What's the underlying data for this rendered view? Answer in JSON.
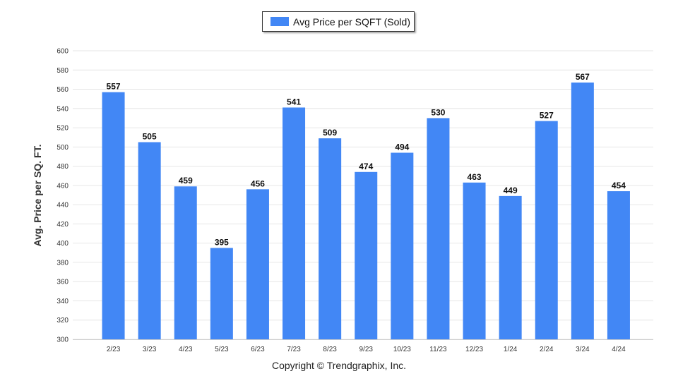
{
  "legend": {
    "label": "Avg Price per SQFT (Sold)"
  },
  "footer": {
    "copyright": "Copyright © Trendgraphix, Inc."
  },
  "colors": {
    "bar": "#4287f5",
    "grid": "#e6e6e6",
    "axis_text": "#333333",
    "label_text": "#111111"
  },
  "chart_data": {
    "type": "bar",
    "title": "",
    "xlabel": "",
    "ylabel": "Avg. Price per SQ. FT.",
    "categories": [
      "2/23",
      "3/23",
      "4/23",
      "5/23",
      "6/23",
      "7/23",
      "8/23",
      "9/23",
      "10/23",
      "11/23",
      "12/23",
      "1/24",
      "2/24",
      "3/24",
      "4/24"
    ],
    "series": [
      {
        "name": "Avg Price per SQFT (Sold)",
        "values": [
          557,
          505,
          459,
          395,
          456,
          541,
          509,
          474,
          494,
          530,
          463,
          449,
          527,
          567,
          454
        ]
      }
    ],
    "ylim": [
      300,
      600
    ],
    "yticks": [
      300,
      320,
      340,
      360,
      380,
      400,
      420,
      440,
      460,
      480,
      500,
      520,
      540,
      560,
      580,
      600
    ],
    "grid": true,
    "legend_position": "top-center",
    "data_labels": true
  }
}
